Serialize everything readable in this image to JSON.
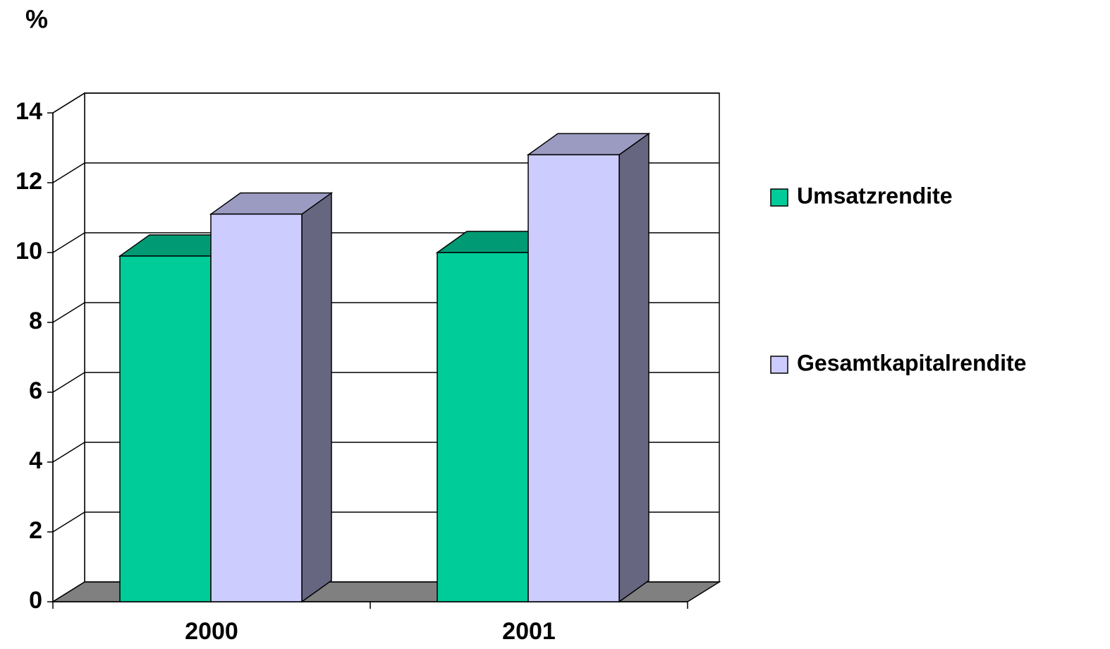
{
  "chart_data": {
    "type": "bar3d",
    "ylabel": "%",
    "categories": [
      "2000",
      "2001"
    ],
    "series": [
      {
        "name": "Umsatzrendite",
        "color": "#00cc99",
        "values": [
          9.9,
          10.0
        ]
      },
      {
        "name": "Gesamtkapitalrendite",
        "color": "#ccccff",
        "values": [
          11.1,
          12.8
        ]
      }
    ],
    "ylim": [
      0,
      14
    ],
    "yticks": [
      0,
      2,
      4,
      6,
      8,
      10,
      12,
      14
    ],
    "grid": true,
    "legend": "right"
  }
}
